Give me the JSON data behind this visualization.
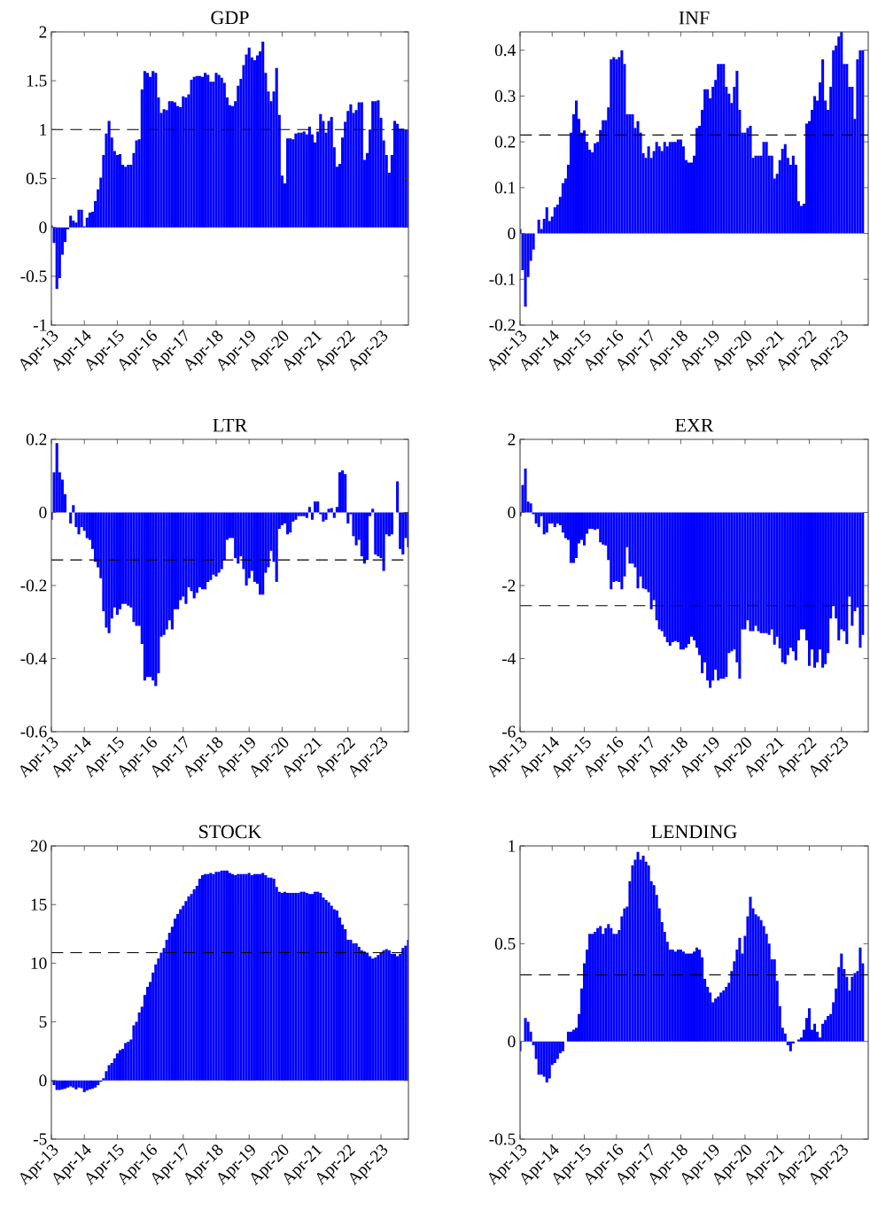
{
  "chart_data": [
    {
      "type": "bar",
      "title": "GDP",
      "color": "#0000ff",
      "xlim": [
        "2013-04",
        "2024-02"
      ],
      "ylim": [
        -1,
        2
      ],
      "xticks": [
        {
          "value": "2013-04",
          "label": "Apr-13"
        },
        {
          "value": "2014-04",
          "label": "Apr-14"
        },
        {
          "value": "2015-04",
          "label": "Apr-15"
        },
        {
          "value": "2016-04",
          "label": "Apr-16"
        },
        {
          "value": "2017-04",
          "label": "Apr-17"
        },
        {
          "value": "2018-04",
          "label": "Apr-18"
        },
        {
          "value": "2019-04",
          "label": "Apr-19"
        },
        {
          "value": "2020-04",
          "label": "Apr-20"
        },
        {
          "value": "2021-04",
          "label": "Apr-21"
        },
        {
          "value": "2022-04",
          "label": "Apr-22"
        },
        {
          "value": "2023-04",
          "label": "Apr-23"
        }
      ],
      "yticks": [
        -1,
        -0.5,
        0,
        0.5,
        1,
        1.5,
        2
      ],
      "ref_lines": [
        {
          "axis": "y",
          "value": 1.0,
          "color": "#000000",
          "line_style": "dashed"
        }
      ],
      "x": [
        "2013-04",
        "2013-05",
        "2013-06",
        "2013-07",
        "2013-08",
        "2013-09",
        "2013-10",
        "2013-11",
        "2013-12",
        "2014-01",
        "2014-02",
        "2014-03",
        "2014-04",
        "2014-05",
        "2014-06",
        "2014-07",
        "2014-08",
        "2014-09",
        "2014-10",
        "2014-11",
        "2014-12",
        "2015-01",
        "2015-02",
        "2015-03",
        "2015-04",
        "2015-05",
        "2015-06",
        "2015-07",
        "2015-08",
        "2015-09",
        "2015-10",
        "2015-11",
        "2015-12",
        "2016-01",
        "2016-02",
        "2016-03",
        "2016-04",
        "2016-05",
        "2016-06",
        "2016-07",
        "2016-08",
        "2016-09",
        "2016-10",
        "2016-11",
        "2016-12",
        "2017-01",
        "2017-02",
        "2017-03",
        "2017-04",
        "2017-05",
        "2017-06",
        "2017-07",
        "2017-08",
        "2017-09",
        "2017-10",
        "2017-11",
        "2017-12",
        "2018-01",
        "2018-02",
        "2018-03",
        "2018-04",
        "2018-05",
        "2018-06",
        "2018-07",
        "2018-08",
        "2018-09",
        "2018-10",
        "2018-11",
        "2018-12",
        "2019-01",
        "2019-02",
        "2019-03",
        "2019-04",
        "2019-05",
        "2019-06",
        "2019-07",
        "2019-08",
        "2019-09",
        "2019-10",
        "2019-11",
        "2019-12",
        "2020-01",
        "2020-02",
        "2020-03",
        "2020-04",
        "2020-05",
        "2020-06",
        "2020-07",
        "2020-08",
        "2020-09",
        "2020-10",
        "2020-11",
        "2020-12",
        "2021-01",
        "2021-02",
        "2021-03",
        "2021-04",
        "2021-05",
        "2021-06",
        "2021-07",
        "2021-08",
        "2021-09",
        "2021-10",
        "2021-11",
        "2021-12",
        "2022-01",
        "2022-02",
        "2022-03",
        "2022-04",
        "2022-05",
        "2022-06",
        "2022-07",
        "2022-08",
        "2022-09",
        "2022-10",
        "2022-11",
        "2022-12",
        "2023-01",
        "2023-02",
        "2023-03",
        "2023-04",
        "2023-05",
        "2023-06",
        "2023-07",
        "2023-08",
        "2023-09",
        "2023-10",
        "2023-11",
        "2023-12",
        "2024-01",
        "2024-02"
      ],
      "values": [
        0.02,
        -0.16,
        -0.63,
        -0.52,
        -0.28,
        -0.15,
        -0.02,
        0.12,
        0.07,
        0.05,
        0.18,
        0.18,
        0.01,
        0.1,
        0.15,
        0.16,
        0.27,
        0.39,
        0.51,
        0.74,
        0.96,
        1.09,
        0.92,
        0.78,
        0.74,
        0.75,
        0.64,
        0.62,
        0.64,
        0.64,
        0.76,
        0.89,
        0.9,
        1.41,
        1.6,
        1.58,
        1.54,
        1.6,
        1.58,
        1.33,
        1.17,
        1.21,
        1.2,
        1.29,
        1.29,
        1.28,
        1.24,
        1.23,
        1.34,
        1.33,
        1.36,
        1.51,
        1.54,
        1.55,
        1.55,
        1.54,
        1.58,
        1.56,
        1.49,
        1.49,
        1.58,
        1.56,
        1.53,
        1.48,
        1.33,
        1.25,
        1.24,
        1.29,
        1.45,
        1.52,
        1.66,
        1.77,
        1.84,
        1.74,
        1.71,
        1.76,
        1.8,
        1.9,
        1.58,
        1.39,
        1.29,
        1.39,
        1.63,
        1.15,
        0.53,
        0.45,
        0.91,
        0.91,
        0.9,
        0.96,
        0.97,
        0.97,
        0.98,
        0.95,
        1.03,
        0.95,
        0.87,
        0.98,
        1.16,
        1.09,
        0.97,
        1.09,
        1.13,
        0.82,
        0.62,
        0.65,
        0.92,
        1.08,
        1.19,
        1.26,
        1.17,
        1.2,
        1.28,
        1.28,
        0.69,
        0.76,
        1.0,
        1.29,
        1.29,
        1.3,
        1.12,
        0.89,
        0.74,
        0.56,
        0.74,
        1.09,
        1.06,
        1.01,
        1.01,
        1.0,
        1.0
      ]
    },
    {
      "type": "bar",
      "title": "INF",
      "color": "#0000ff",
      "xlim": [
        "2013-04",
        "2024-02"
      ],
      "ylim": [
        -0.2,
        0.44
      ],
      "xticks": [
        {
          "value": "2013-04",
          "label": "Apr-13"
        },
        {
          "value": "2014-04",
          "label": "Apr-14"
        },
        {
          "value": "2015-04",
          "label": "Apr-15"
        },
        {
          "value": "2016-04",
          "label": "Apr-16"
        },
        {
          "value": "2017-04",
          "label": "Apr-17"
        },
        {
          "value": "2018-04",
          "label": "Apr-18"
        },
        {
          "value": "2019-04",
          "label": "Apr-19"
        },
        {
          "value": "2020-04",
          "label": "Apr-20"
        },
        {
          "value": "2021-04",
          "label": "Apr-21"
        },
        {
          "value": "2022-04",
          "label": "Apr-22"
        },
        {
          "value": "2023-04",
          "label": "Apr-23"
        }
      ],
      "yticks": [
        -0.2,
        -0.1,
        0,
        0.1,
        0.2,
        0.3,
        0.4
      ],
      "ref_lines": [
        {
          "axis": "y",
          "value": 0.215,
          "color": "#000000",
          "line_style": "dashed"
        }
      ],
      "x": [
        "2013-04",
        "2013-05",
        "2013-06",
        "2013-07",
        "2013-08",
        "2013-09",
        "2013-10",
        "2013-11",
        "2013-12",
        "2014-01",
        "2014-02",
        "2014-03",
        "2014-04",
        "2014-05",
        "2014-06",
        "2014-07",
        "2014-08",
        "2014-09",
        "2014-10",
        "2014-11",
        "2014-12",
        "2015-01",
        "2015-02",
        "2015-03",
        "2015-04",
        "2015-05",
        "2015-06",
        "2015-07",
        "2015-08",
        "2015-09",
        "2015-10",
        "2015-11",
        "2015-12",
        "2016-01",
        "2016-02",
        "2016-03",
        "2016-04",
        "2016-05",
        "2016-06",
        "2016-07",
        "2016-08",
        "2016-09",
        "2016-10",
        "2016-11",
        "2016-12",
        "2017-01",
        "2017-02",
        "2017-03",
        "2017-04",
        "2017-05",
        "2017-06",
        "2017-07",
        "2017-08",
        "2017-09",
        "2017-10",
        "2017-11",
        "2017-12",
        "2018-01",
        "2018-02",
        "2018-03",
        "2018-04",
        "2018-05",
        "2018-06",
        "2018-07",
        "2018-08",
        "2018-09",
        "2018-10",
        "2018-11",
        "2018-12",
        "2019-01",
        "2019-02",
        "2019-03",
        "2019-04",
        "2019-05",
        "2019-06",
        "2019-07",
        "2019-08",
        "2019-09",
        "2019-10",
        "2019-11",
        "2019-12",
        "2020-01",
        "2020-02",
        "2020-03",
        "2020-04",
        "2020-05",
        "2020-06",
        "2020-07",
        "2020-08",
        "2020-09",
        "2020-10",
        "2020-11",
        "2020-12",
        "2021-01",
        "2021-02",
        "2021-03",
        "2021-04",
        "2021-05",
        "2021-06",
        "2021-07",
        "2021-08",
        "2021-09",
        "2021-10",
        "2021-11",
        "2021-12",
        "2022-01",
        "2022-02",
        "2022-03",
        "2022-04",
        "2022-05",
        "2022-06",
        "2022-07",
        "2022-08",
        "2022-09",
        "2022-10",
        "2022-11",
        "2022-12",
        "2023-01",
        "2023-02",
        "2023-03",
        "2023-04",
        "2023-05",
        "2023-06",
        "2023-07",
        "2023-08",
        "2023-09",
        "2023-10",
        "2023-11",
        "2023-12"
      ],
      "values": [
        0.01,
        -0.08,
        -0.16,
        -0.095,
        -0.06,
        -0.035,
        0.0,
        0.03,
        0.01,
        0.032,
        0.057,
        0.027,
        0.037,
        0.057,
        0.063,
        0.08,
        0.11,
        0.12,
        0.15,
        0.22,
        0.26,
        0.29,
        0.25,
        0.22,
        0.225,
        0.2,
        0.183,
        0.177,
        0.197,
        0.2,
        0.226,
        0.247,
        0.247,
        0.275,
        0.38,
        0.385,
        0.38,
        0.385,
        0.4,
        0.37,
        0.26,
        0.26,
        0.26,
        0.23,
        0.245,
        0.22,
        0.175,
        0.165,
        0.19,
        0.165,
        0.18,
        0.2,
        0.19,
        0.18,
        0.2,
        0.19,
        0.2,
        0.2,
        0.2,
        0.205,
        0.205,
        0.19,
        0.16,
        0.155,
        0.155,
        0.17,
        0.23,
        0.235,
        0.27,
        0.315,
        0.315,
        0.295,
        0.32,
        0.335,
        0.37,
        0.37,
        0.37,
        0.32,
        0.305,
        0.285,
        0.32,
        0.355,
        0.27,
        0.22,
        0.22,
        0.23,
        0.235,
        0.165,
        0.17,
        0.17,
        0.17,
        0.2,
        0.2,
        0.17,
        0.17,
        0.12,
        0.13,
        0.16,
        0.185,
        0.195,
        0.165,
        0.15,
        0.17,
        0.15,
        0.07,
        0.06,
        0.065,
        0.24,
        0.245,
        0.27,
        0.3,
        0.29,
        0.33,
        0.38,
        0.29,
        0.27,
        0.32,
        0.4,
        0.41,
        0.43,
        0.44,
        0.37,
        0.37,
        0.32,
        0.32,
        0.25,
        0.38,
        0.4,
        0.4
      ]
    },
    {
      "type": "bar",
      "title": "LTR",
      "color": "#0000ff",
      "xlim": [
        "2013-04",
        "2024-02"
      ],
      "ylim": [
        -0.6,
        0.2
      ],
      "xticks": [
        {
          "value": "2013-04",
          "label": "Apr-13"
        },
        {
          "value": "2014-04",
          "label": "Apr-14"
        },
        {
          "value": "2015-04",
          "label": "Apr-15"
        },
        {
          "value": "2016-04",
          "label": "Apr-16"
        },
        {
          "value": "2017-04",
          "label": "Apr-17"
        },
        {
          "value": "2018-04",
          "label": "Apr-18"
        },
        {
          "value": "2019-04",
          "label": "Apr-19"
        },
        {
          "value": "2020-04",
          "label": "Apr-20"
        },
        {
          "value": "2021-04",
          "label": "Apr-21"
        },
        {
          "value": "2022-04",
          "label": "Apr-22"
        },
        {
          "value": "2023-04",
          "label": "Apr-23"
        }
      ],
      "yticks": [
        -0.6,
        -0.4,
        -0.2,
        0,
        0.2
      ],
      "ref_lines": [
        {
          "axis": "y",
          "value": -0.13,
          "color": "#000000",
          "line_style": "dashed"
        }
      ],
      "x": [
        "2013-04",
        "2013-05",
        "2013-06",
        "2013-07",
        "2013-08",
        "2013-09",
        "2013-10",
        "2013-11",
        "2013-12",
        "2014-01",
        "2014-02",
        "2014-03",
        "2014-04",
        "2014-05",
        "2014-06",
        "2014-07",
        "2014-08",
        "2014-09",
        "2014-10",
        "2014-11",
        "2014-12",
        "2015-01",
        "2015-02",
        "2015-03",
        "2015-04",
        "2015-05",
        "2015-06",
        "2015-07",
        "2015-08",
        "2015-09",
        "2015-10",
        "2015-11",
        "2015-12",
        "2016-01",
        "2016-02",
        "2016-03",
        "2016-04",
        "2016-05",
        "2016-06",
        "2016-07",
        "2016-08",
        "2016-09",
        "2016-10",
        "2016-11",
        "2016-12",
        "2017-01",
        "2017-02",
        "2017-03",
        "2017-04",
        "2017-05",
        "2017-06",
        "2017-07",
        "2017-08",
        "2017-09",
        "2017-10",
        "2017-11",
        "2017-12",
        "2018-01",
        "2018-02",
        "2018-03",
        "2018-04",
        "2018-05",
        "2018-06",
        "2018-07",
        "2018-08",
        "2018-09",
        "2018-10",
        "2018-11",
        "2018-12",
        "2019-01",
        "2019-02",
        "2019-03",
        "2019-04",
        "2019-05",
        "2019-06",
        "2019-07",
        "2019-08",
        "2019-09",
        "2019-10",
        "2019-11",
        "2019-12",
        "2020-01",
        "2020-02",
        "2020-03",
        "2020-04",
        "2020-05",
        "2020-06",
        "2020-07",
        "2020-08",
        "2020-09",
        "2020-10",
        "2020-11",
        "2020-12",
        "2021-01",
        "2021-02",
        "2021-03",
        "2021-04",
        "2021-05",
        "2021-06",
        "2021-07",
        "2021-08",
        "2021-09",
        "2021-10",
        "2021-11",
        "2021-12",
        "2022-01",
        "2022-02",
        "2022-03",
        "2022-04",
        "2022-05",
        "2022-06",
        "2022-07",
        "2022-08",
        "2022-09",
        "2022-10",
        "2022-11",
        "2022-12",
        "2023-01",
        "2023-02",
        "2023-03",
        "2023-04",
        "2023-05",
        "2023-06",
        "2023-07",
        "2023-08",
        "2023-09",
        "2023-10",
        "2023-11",
        "2023-12",
        "2024-01",
        "2024-02"
      ],
      "values": [
        -0.02,
        0.11,
        0.19,
        0.11,
        0.09,
        0.05,
        0.0,
        -0.03,
        0.02,
        -0.04,
        -0.06,
        -0.04,
        -0.05,
        -0.07,
        -0.075,
        -0.1,
        -0.135,
        -0.15,
        -0.18,
        -0.27,
        -0.315,
        -0.33,
        -0.29,
        -0.26,
        -0.28,
        -0.265,
        -0.25,
        -0.25,
        -0.255,
        -0.26,
        -0.3,
        -0.31,
        -0.31,
        -0.36,
        -0.46,
        -0.45,
        -0.45,
        -0.46,
        -0.475,
        -0.44,
        -0.34,
        -0.335,
        -0.32,
        -0.295,
        -0.32,
        -0.265,
        -0.265,
        -0.24,
        -0.23,
        -0.25,
        -0.205,
        -0.215,
        -0.235,
        -0.22,
        -0.205,
        -0.21,
        -0.21,
        -0.19,
        -0.185,
        -0.17,
        -0.175,
        -0.165,
        -0.155,
        -0.13,
        -0.075,
        -0.07,
        -0.07,
        -0.125,
        -0.14,
        -0.12,
        -0.155,
        -0.2,
        -0.18,
        -0.16,
        -0.19,
        -0.195,
        -0.225,
        -0.225,
        -0.165,
        -0.15,
        -0.105,
        -0.135,
        -0.19,
        -0.045,
        -0.035,
        -0.03,
        -0.06,
        -0.055,
        -0.025,
        -0.02,
        -0.01,
        -0.01,
        -0.01,
        -0.015,
        0.015,
        -0.02,
        0.03,
        0.03,
        -0.005,
        -0.025,
        -0.02,
        0.01,
        0.012,
        -0.015,
        0.015,
        0.11,
        0.115,
        0.105,
        -0.03,
        -0.005,
        -0.065,
        -0.09,
        -0.075,
        -0.12,
        -0.14,
        -0.13,
        -0.01,
        0.01,
        -0.115,
        -0.12,
        -0.125,
        -0.16,
        -0.06,
        -0.065,
        -0.06,
        0.0,
        0.085,
        -0.1,
        -0.115,
        -0.07,
        -0.095
      ]
    },
    {
      "type": "bar",
      "title": "EXR",
      "color": "#0000ff",
      "xlim": [
        "2013-04",
        "2024-02"
      ],
      "ylim": [
        -6,
        2
      ],
      "xticks": [
        {
          "value": "2013-04",
          "label": "Apr-13"
        },
        {
          "value": "2014-04",
          "label": "Apr-14"
        },
        {
          "value": "2015-04",
          "label": "Apr-15"
        },
        {
          "value": "2016-04",
          "label": "Apr-16"
        },
        {
          "value": "2017-04",
          "label": "Apr-17"
        },
        {
          "value": "2018-04",
          "label": "Apr-18"
        },
        {
          "value": "2019-04",
          "label": "Apr-19"
        },
        {
          "value": "2020-04",
          "label": "Apr-20"
        },
        {
          "value": "2021-04",
          "label": "Apr-21"
        },
        {
          "value": "2022-04",
          "label": "Apr-22"
        },
        {
          "value": "2023-04",
          "label": "Apr-23"
        }
      ],
      "yticks": [
        -6,
        -4,
        -2,
        0,
        2
      ],
      "ref_lines": [
        {
          "axis": "y",
          "value": -2.55,
          "color": "#000000",
          "line_style": "dashed"
        }
      ],
      "x": [
        "2013-04",
        "2013-05",
        "2013-06",
        "2013-07",
        "2013-08",
        "2013-09",
        "2013-10",
        "2013-11",
        "2013-12",
        "2014-01",
        "2014-02",
        "2014-03",
        "2014-04",
        "2014-05",
        "2014-06",
        "2014-07",
        "2014-08",
        "2014-09",
        "2014-10",
        "2014-11",
        "2014-12",
        "2015-01",
        "2015-02",
        "2015-03",
        "2015-04",
        "2015-05",
        "2015-06",
        "2015-07",
        "2015-08",
        "2015-09",
        "2015-10",
        "2015-11",
        "2015-12",
        "2016-01",
        "2016-02",
        "2016-03",
        "2016-04",
        "2016-05",
        "2016-06",
        "2016-07",
        "2016-08",
        "2016-09",
        "2016-10",
        "2016-11",
        "2016-12",
        "2017-01",
        "2017-02",
        "2017-03",
        "2017-04",
        "2017-05",
        "2017-06",
        "2017-07",
        "2017-08",
        "2017-09",
        "2017-10",
        "2017-11",
        "2017-12",
        "2018-01",
        "2018-02",
        "2018-03",
        "2018-04",
        "2018-05",
        "2018-06",
        "2018-07",
        "2018-08",
        "2018-09",
        "2018-10",
        "2018-11",
        "2018-12",
        "2019-01",
        "2019-02",
        "2019-03",
        "2019-04",
        "2019-05",
        "2019-06",
        "2019-07",
        "2019-08",
        "2019-09",
        "2019-10",
        "2019-11",
        "2019-12",
        "2020-01",
        "2020-02",
        "2020-03",
        "2020-04",
        "2020-05",
        "2020-06",
        "2020-07",
        "2020-08",
        "2020-09",
        "2020-10",
        "2020-11",
        "2020-12",
        "2021-01",
        "2021-02",
        "2021-03",
        "2021-04",
        "2021-05",
        "2021-06",
        "2021-07",
        "2021-08",
        "2021-09",
        "2021-10",
        "2021-11",
        "2021-12",
        "2022-01",
        "2022-02",
        "2022-03",
        "2022-04",
        "2022-05",
        "2022-06",
        "2022-07",
        "2022-08",
        "2022-09",
        "2022-10",
        "2022-11",
        "2022-12",
        "2023-01",
        "2023-02",
        "2023-03",
        "2023-04",
        "2023-05",
        "2023-06",
        "2023-07",
        "2023-08",
        "2023-09",
        "2023-10",
        "2023-11",
        "2023-12"
      ],
      "values": [
        -0.1,
        0.75,
        1.2,
        0.3,
        0.25,
        -0.05,
        -0.3,
        -0.4,
        -0.1,
        -0.6,
        -0.55,
        -0.3,
        -0.3,
        -0.4,
        -0.3,
        -0.35,
        -0.55,
        -0.7,
        -0.75,
        -1.38,
        -1.38,
        -1.25,
        -0.85,
        -0.75,
        -0.9,
        -0.58,
        -0.45,
        -0.45,
        -0.48,
        -0.45,
        -0.82,
        -0.88,
        -0.9,
        -1.3,
        -2.1,
        -1.9,
        -1.88,
        -1.9,
        -2.1,
        -1.75,
        -0.95,
        -1.4,
        -1.4,
        -1.5,
        -2.08,
        -1.75,
        -2.08,
        -2.1,
        -2.18,
        -2.65,
        -2.4,
        -2.95,
        -3.2,
        -3.25,
        -3.4,
        -3.55,
        -3.65,
        -3.55,
        -3.52,
        -3.55,
        -3.75,
        -3.75,
        -3.7,
        -3.6,
        -3.4,
        -3.5,
        -3.7,
        -3.9,
        -4.4,
        -4.1,
        -4.6,
        -4.8,
        -4.6,
        -4.3,
        -4.6,
        -4.55,
        -4.55,
        -4.5,
        -3.85,
        -3.8,
        -3.75,
        -4.1,
        -4.55,
        -3.2,
        -3.2,
        -2.95,
        -3.25,
        -3.25,
        -3.1,
        -3.25,
        -3.3,
        -3.3,
        -3.3,
        -3.35,
        -3.2,
        -3.62,
        -3.4,
        -3.72,
        -4.1,
        -4.15,
        -3.9,
        -3.7,
        -3.8,
        -4.05,
        -3.5,
        -3.2,
        -3.2,
        -3.5,
        -4.2,
        -3.75,
        -4.25,
        -4.1,
        -3.75,
        -4.25,
        -4.15,
        -3.85,
        -2.9,
        -2.55,
        -2.9,
        -3.5,
        -3.2,
        -3.25,
        -3.6,
        -2.3,
        -3.1,
        -2.7,
        -2.6,
        -3.7,
        -3.35
      ]
    },
    {
      "type": "bar",
      "title": "STOCK",
      "color": "#0000ff",
      "xlim": [
        "2013-04",
        "2024-02"
      ],
      "ylim": [
        -5,
        20
      ],
      "xticks": [
        {
          "value": "2013-04",
          "label": "Apr-13"
        },
        {
          "value": "2014-04",
          "label": "Apr-14"
        },
        {
          "value": "2015-04",
          "label": "Apr-15"
        },
        {
          "value": "2016-04",
          "label": "Apr-16"
        },
        {
          "value": "2017-04",
          "label": "Apr-17"
        },
        {
          "value": "2018-04",
          "label": "Apr-18"
        },
        {
          "value": "2019-04",
          "label": "Apr-19"
        },
        {
          "value": "2020-04",
          "label": "Apr-20"
        },
        {
          "value": "2021-04",
          "label": "Apr-21"
        },
        {
          "value": "2022-04",
          "label": "Apr-22"
        },
        {
          "value": "2023-04",
          "label": "Apr-23"
        }
      ],
      "yticks": [
        -5,
        0,
        5,
        10,
        15,
        20
      ],
      "ref_lines": [
        {
          "axis": "y",
          "value": 10.9,
          "color": "#000000",
          "line_style": "dashed"
        }
      ],
      "x": [
        "2013-04",
        "2013-05",
        "2013-06",
        "2013-07",
        "2013-08",
        "2013-09",
        "2013-10",
        "2013-11",
        "2013-12",
        "2014-01",
        "2014-02",
        "2014-03",
        "2014-04",
        "2014-05",
        "2014-06",
        "2014-07",
        "2014-08",
        "2014-09",
        "2014-10",
        "2014-11",
        "2014-12",
        "2015-01",
        "2015-02",
        "2015-03",
        "2015-04",
        "2015-05",
        "2015-06",
        "2015-07",
        "2015-08",
        "2015-09",
        "2015-10",
        "2015-11",
        "2015-12",
        "2016-01",
        "2016-02",
        "2016-03",
        "2016-04",
        "2016-05",
        "2016-06",
        "2016-07",
        "2016-08",
        "2016-09",
        "2016-10",
        "2016-11",
        "2016-12",
        "2017-01",
        "2017-02",
        "2017-03",
        "2017-04",
        "2017-05",
        "2017-06",
        "2017-07",
        "2017-08",
        "2017-09",
        "2017-10",
        "2017-11",
        "2017-12",
        "2018-01",
        "2018-02",
        "2018-03",
        "2018-04",
        "2018-05",
        "2018-06",
        "2018-07",
        "2018-08",
        "2018-09",
        "2018-10",
        "2018-11",
        "2018-12",
        "2019-01",
        "2019-02",
        "2019-03",
        "2019-04",
        "2019-05",
        "2019-06",
        "2019-07",
        "2019-08",
        "2019-09",
        "2019-10",
        "2019-11",
        "2019-12",
        "2020-01",
        "2020-02",
        "2020-03",
        "2020-04",
        "2020-05",
        "2020-06",
        "2020-07",
        "2020-08",
        "2020-09",
        "2020-10",
        "2020-11",
        "2020-12",
        "2021-01",
        "2021-02",
        "2021-03",
        "2021-04",
        "2021-05",
        "2021-06",
        "2021-07",
        "2021-08",
        "2021-09",
        "2021-10",
        "2021-11",
        "2021-12",
        "2022-01",
        "2022-02",
        "2022-03",
        "2022-04",
        "2022-05",
        "2022-06",
        "2022-07",
        "2022-08",
        "2022-09",
        "2022-10",
        "2022-11",
        "2022-12",
        "2023-01",
        "2023-02",
        "2023-03",
        "2023-04",
        "2023-05",
        "2023-06",
        "2023-07",
        "2023-08",
        "2023-09",
        "2023-10",
        "2023-11",
        "2023-12",
        "2024-01",
        "2024-02"
      ],
      "values": [
        -0.1,
        -0.4,
        -0.8,
        -0.8,
        -0.75,
        -0.7,
        -0.6,
        -0.5,
        -0.6,
        -0.75,
        -0.6,
        -0.65,
        -1.0,
        -0.85,
        -0.75,
        -0.7,
        -0.6,
        -0.4,
        -0.1,
        0.2,
        0.8,
        1.3,
        1.5,
        1.9,
        2.3,
        2.6,
        2.7,
        3.2,
        3.3,
        3.5,
        4.7,
        5.0,
        5.8,
        6.3,
        7.3,
        8.0,
        8.4,
        9.2,
        9.9,
        10.4,
        10.9,
        11.3,
        12.0,
        12.6,
        13.1,
        13.8,
        14.2,
        14.6,
        14.9,
        15.3,
        15.7,
        15.9,
        16.3,
        16.6,
        17.2,
        17.5,
        17.6,
        17.6,
        17.7,
        17.6,
        17.8,
        17.8,
        17.9,
        17.9,
        17.9,
        17.7,
        17.6,
        17.5,
        17.6,
        17.6,
        17.6,
        17.6,
        17.7,
        17.5,
        17.6,
        17.6,
        17.6,
        17.7,
        17.5,
        17.3,
        17.3,
        17.2,
        16.5,
        16.1,
        16.0,
        16.1,
        16.0,
        16.0,
        16.0,
        16.0,
        16.0,
        16.1,
        16.1,
        16.0,
        15.9,
        15.9,
        16.1,
        16.1,
        16.0,
        15.6,
        15.4,
        15.2,
        14.9,
        14.6,
        14.5,
        13.9,
        13.3,
        12.9,
        12.0,
        12.0,
        11.7,
        11.7,
        11.4,
        11.1,
        11.0,
        10.9,
        10.6,
        10.4,
        10.5,
        10.7,
        10.9,
        11.1,
        11.2,
        11.1,
        10.8,
        10.8,
        10.6,
        10.8,
        11.3,
        11.5,
        12.0
      ]
    },
    {
      "type": "bar",
      "title": "LENDING",
      "color": "#0000ff",
      "xlim": [
        "2013-04",
        "2024-02"
      ],
      "ylim": [
        -0.5,
        1
      ],
      "xticks": [
        {
          "value": "2013-04",
          "label": "Apr-13"
        },
        {
          "value": "2014-04",
          "label": "Apr-14"
        },
        {
          "value": "2015-04",
          "label": "Apr-15"
        },
        {
          "value": "2016-04",
          "label": "Apr-16"
        },
        {
          "value": "2017-04",
          "label": "Apr-17"
        },
        {
          "value": "2018-04",
          "label": "Apr-18"
        },
        {
          "value": "2019-04",
          "label": "Apr-19"
        },
        {
          "value": "2020-04",
          "label": "Apr-20"
        },
        {
          "value": "2021-04",
          "label": "Apr-21"
        },
        {
          "value": "2022-04",
          "label": "Apr-22"
        },
        {
          "value": "2023-04",
          "label": "Apr-23"
        }
      ],
      "yticks": [
        -0.5,
        0,
        0.5,
        1
      ],
      "ref_lines": [
        {
          "axis": "y",
          "value": 0.34,
          "color": "#000000",
          "line_style": "dashed"
        }
      ],
      "x": [
        "2013-04",
        "2013-05",
        "2013-06",
        "2013-07",
        "2013-08",
        "2013-09",
        "2013-10",
        "2013-11",
        "2013-12",
        "2014-01",
        "2014-02",
        "2014-03",
        "2014-04",
        "2014-05",
        "2014-06",
        "2014-07",
        "2014-08",
        "2014-09",
        "2014-10",
        "2014-11",
        "2014-12",
        "2015-01",
        "2015-02",
        "2015-03",
        "2015-04",
        "2015-05",
        "2015-06",
        "2015-07",
        "2015-08",
        "2015-09",
        "2015-10",
        "2015-11",
        "2015-12",
        "2016-01",
        "2016-02",
        "2016-03",
        "2016-04",
        "2016-05",
        "2016-06",
        "2016-07",
        "2016-08",
        "2016-09",
        "2016-10",
        "2016-11",
        "2016-12",
        "2017-01",
        "2017-02",
        "2017-03",
        "2017-04",
        "2017-05",
        "2017-06",
        "2017-07",
        "2017-08",
        "2017-09",
        "2017-10",
        "2017-11",
        "2017-12",
        "2018-01",
        "2018-02",
        "2018-03",
        "2018-04",
        "2018-05",
        "2018-06",
        "2018-07",
        "2018-08",
        "2018-09",
        "2018-10",
        "2018-11",
        "2018-12",
        "2019-01",
        "2019-02",
        "2019-03",
        "2019-04",
        "2019-05",
        "2019-06",
        "2019-07",
        "2019-08",
        "2019-09",
        "2019-10",
        "2019-11",
        "2019-12",
        "2020-01",
        "2020-02",
        "2020-03",
        "2020-04",
        "2020-05",
        "2020-06",
        "2020-07",
        "2020-08",
        "2020-09",
        "2020-10",
        "2020-11",
        "2020-12",
        "2021-01",
        "2021-02",
        "2021-03",
        "2021-04",
        "2021-05",
        "2021-06",
        "2021-07",
        "2021-08",
        "2021-09",
        "2021-10",
        "2021-11",
        "2021-12",
        "2022-01",
        "2022-02",
        "2022-03",
        "2022-04",
        "2022-05",
        "2022-06",
        "2022-07",
        "2022-08",
        "2022-09",
        "2022-10",
        "2022-11",
        "2022-12",
        "2023-01",
        "2023-02",
        "2023-03",
        "2023-04",
        "2023-05",
        "2023-06",
        "2023-07",
        "2023-08",
        "2023-09",
        "2023-10",
        "2023-11",
        "2023-12"
      ],
      "values": [
        -0.05,
        0.0,
        0.12,
        0.1,
        0.05,
        -0.02,
        -0.09,
        -0.17,
        -0.17,
        -0.18,
        -0.21,
        -0.19,
        -0.12,
        -0.11,
        -0.09,
        -0.06,
        -0.05,
        0.0,
        0.05,
        0.05,
        0.06,
        0.07,
        0.14,
        0.27,
        0.4,
        0.47,
        0.55,
        0.55,
        0.56,
        0.58,
        0.59,
        0.55,
        0.58,
        0.6,
        0.58,
        0.55,
        0.55,
        0.57,
        0.64,
        0.68,
        0.69,
        0.82,
        0.9,
        0.93,
        0.97,
        0.93,
        0.95,
        0.92,
        0.9,
        0.82,
        0.8,
        0.75,
        0.68,
        0.61,
        0.56,
        0.51,
        0.47,
        0.47,
        0.46,
        0.47,
        0.47,
        0.46,
        0.45,
        0.45,
        0.45,
        0.46,
        0.48,
        0.47,
        0.43,
        0.32,
        0.28,
        0.25,
        0.2,
        0.22,
        0.23,
        0.25,
        0.26,
        0.28,
        0.3,
        0.36,
        0.41,
        0.47,
        0.53,
        0.45,
        0.54,
        0.64,
        0.74,
        0.68,
        0.65,
        0.64,
        0.62,
        0.59,
        0.55,
        0.5,
        0.42,
        0.42,
        0.31,
        0.18,
        0.07,
        0.04,
        -0.02,
        -0.05,
        -0.01,
        0.0,
        0.01,
        0.02,
        0.06,
        0.12,
        0.17,
        0.06,
        0.09,
        0.05,
        0.02,
        0.09,
        0.11,
        0.13,
        0.14,
        0.2,
        0.27,
        0.38,
        0.45,
        0.37,
        0.33,
        0.26,
        0.33,
        0.35,
        0.36,
        0.48,
        0.4
      ]
    }
  ]
}
